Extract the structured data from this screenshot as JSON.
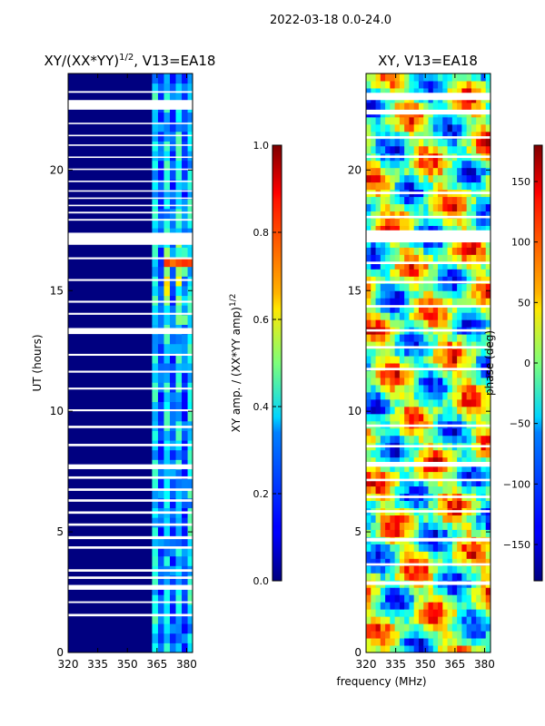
{
  "suptitle": "2022-03-18 0.0-24.0",
  "shared_xlabel": "frequency (MHz)",
  "chart_data": [
    {
      "type": "heatmap",
      "title": "XY/(XX*YY)^1/2, V13=EA18",
      "title_main": "XY/(XX*YY)",
      "title_sup": "1/2",
      "title_rest": ", V13=EA18",
      "xlabel": "frequency (MHz)",
      "ylabel": "UT (hours)",
      "xlim": [
        320,
        383
      ],
      "ylim": [
        0,
        24
      ],
      "xticks": [
        320,
        335,
        350,
        365,
        380
      ],
      "yticks": [
        0,
        5,
        10,
        15,
        20
      ],
      "colorbar": {
        "label_main": "XY amp. / (XX*YY amp)",
        "label_sup": "1/2",
        "range": [
          0.0,
          1.0
        ],
        "ticks": [
          "0.0",
          "0.2",
          "0.4",
          "0.6",
          "0.8",
          "1.0"
        ],
        "colormap": "jet"
      },
      "gaps_hours": [
        [
          1.5,
          1.6
        ],
        [
          2.05,
          2.12
        ],
        [
          2.6,
          2.8
        ],
        [
          3.05,
          3.15
        ],
        [
          3.35,
          3.45
        ],
        [
          4.3,
          4.4
        ],
        [
          4.7,
          4.82
        ],
        [
          5.25,
          5.35
        ],
        [
          5.75,
          5.85
        ],
        [
          6.25,
          6.35
        ],
        [
          6.7,
          6.8
        ],
        [
          7.2,
          7.3
        ],
        [
          7.6,
          7.8
        ],
        [
          8.55,
          8.65
        ],
        [
          9.3,
          9.4
        ],
        [
          10.0,
          10.08
        ],
        [
          10.9,
          10.98
        ],
        [
          11.6,
          11.68
        ],
        [
          12.3,
          12.38
        ],
        [
          13.2,
          13.45
        ],
        [
          14.0,
          14.08
        ],
        [
          14.5,
          14.58
        ],
        [
          15.4,
          15.48
        ],
        [
          16.3,
          16.38
        ],
        [
          16.9,
          17.4
        ],
        [
          17.9,
          17.97
        ],
        [
          18.2,
          18.27
        ],
        [
          18.5,
          18.56
        ],
        [
          18.8,
          18.86
        ],
        [
          19.1,
          19.16
        ],
        [
          19.5,
          19.56
        ],
        [
          20.0,
          20.06
        ],
        [
          20.5,
          20.56
        ],
        [
          21.0,
          21.06
        ],
        [
          21.4,
          21.46
        ],
        [
          21.9,
          21.96
        ],
        [
          22.5,
          22.9
        ],
        [
          23.2,
          23.27
        ]
      ]
    },
    {
      "type": "heatmap",
      "title": "XY, V13=EA18",
      "xlabel": "frequency (MHz)",
      "ylabel": "",
      "xlim": [
        320,
        383
      ],
      "ylim": [
        0,
        24
      ],
      "xticks": [
        320,
        335,
        350,
        365,
        380
      ],
      "yticks": [
        0,
        5,
        10,
        15,
        20
      ],
      "colorbar": {
        "label": "phase (deg)",
        "range": [
          -180,
          180
        ],
        "ticks": [
          "−150",
          "−100",
          "−50",
          "0",
          "50",
          "100",
          "150"
        ],
        "tick_values": [
          -150,
          -100,
          -50,
          0,
          50,
          100,
          150
        ],
        "colormap": "jet"
      },
      "gaps_hours": [
        [
          2.8,
          2.95
        ],
        [
          3.6,
          3.7
        ],
        [
          4.6,
          4.75
        ],
        [
          5.8,
          5.9
        ],
        [
          6.4,
          6.5
        ],
        [
          7.1,
          7.2
        ],
        [
          7.7,
          7.9
        ],
        [
          8.5,
          8.6
        ],
        [
          9.35,
          9.45
        ],
        [
          11.7,
          11.8
        ],
        [
          12.6,
          12.7
        ],
        [
          13.3,
          13.4
        ],
        [
          14.3,
          14.4
        ],
        [
          15.3,
          15.4
        ],
        [
          16.1,
          16.2
        ],
        [
          17.0,
          17.5
        ],
        [
          18.0,
          18.1
        ],
        [
          19.0,
          19.1
        ],
        [
          20.5,
          20.6
        ],
        [
          21.3,
          21.4
        ],
        [
          22.3,
          22.5
        ],
        [
          22.9,
          23.2
        ]
      ]
    }
  ]
}
